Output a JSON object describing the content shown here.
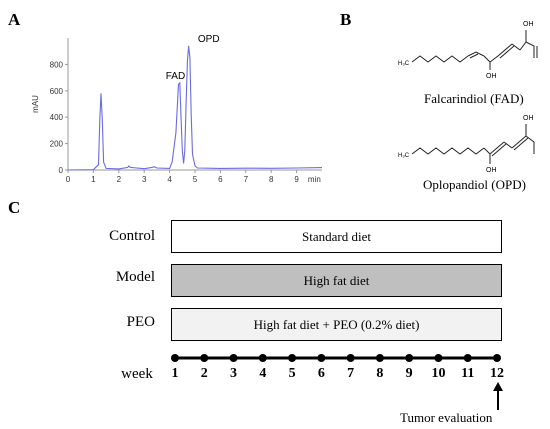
{
  "panels": {
    "a": "A",
    "b": "B",
    "c": "C"
  },
  "chart_data": {
    "type": "line",
    "ylabel": "mAU",
    "x_unit": "min",
    "x_ticks": [
      "0",
      "1",
      "2",
      "3",
      "4",
      "5",
      "6",
      "7",
      "8",
      "9"
    ],
    "y_ticks": [
      "0",
      "200",
      "400",
      "600",
      "800"
    ],
    "xlim": [
      0,
      10
    ],
    "ylim": [
      0,
      1000
    ],
    "series": [
      {
        "x": [
          0.0,
          1.0,
          1.2,
          1.25,
          1.3,
          1.35,
          1.4,
          1.5,
          2.0,
          2.35,
          2.4,
          2.45,
          3.0,
          3.3,
          3.4,
          3.5,
          4.0,
          4.1,
          4.25,
          4.35,
          4.4,
          4.45,
          4.5,
          4.55,
          4.6,
          4.65,
          4.7,
          4.75,
          4.8,
          4.85,
          4.9,
          5.0,
          5.1,
          6.0,
          7.0,
          8.0,
          9.0,
          10.0
        ],
        "values": [
          0,
          2,
          40,
          380,
          580,
          380,
          60,
          12,
          8,
          20,
          30,
          20,
          10,
          20,
          25,
          15,
          12,
          60,
          280,
          650,
          660,
          400,
          150,
          50,
          150,
          500,
          820,
          940,
          850,
          420,
          120,
          30,
          15,
          12,
          14,
          13,
          15,
          18
        ],
        "color": "#6b6be0"
      }
    ],
    "annotations": [
      {
        "text": "FAD",
        "x": 4.4,
        "y": 660
      },
      {
        "text": "OPD",
        "x": 4.8,
        "y": 940
      }
    ],
    "grid": false
  },
  "compounds": [
    {
      "name": "Falcarindiol (FAD)",
      "labels": [
        "OH",
        "OH",
        "H₃C"
      ]
    },
    {
      "name": "Oplopandiol (OPD)",
      "labels": [
        "OH",
        "OH",
        "H₃C"
      ]
    }
  ],
  "design": {
    "groups": [
      {
        "label": "Control",
        "diet": "Standard diet",
        "fill": "#ffffff"
      },
      {
        "label": "Model",
        "diet": "High fat diet",
        "fill": "#bfbfbf"
      },
      {
        "label": "PEO",
        "diet": "High fat diet + PEO (0.2% diet)",
        "fill": "#f2f2f2"
      }
    ],
    "week_label": "week",
    "weeks": [
      "1",
      "2",
      "3",
      "4",
      "5",
      "6",
      "7",
      "8",
      "9",
      "10",
      "11",
      "12"
    ],
    "endpoint_label": "Tumor evaluation"
  }
}
